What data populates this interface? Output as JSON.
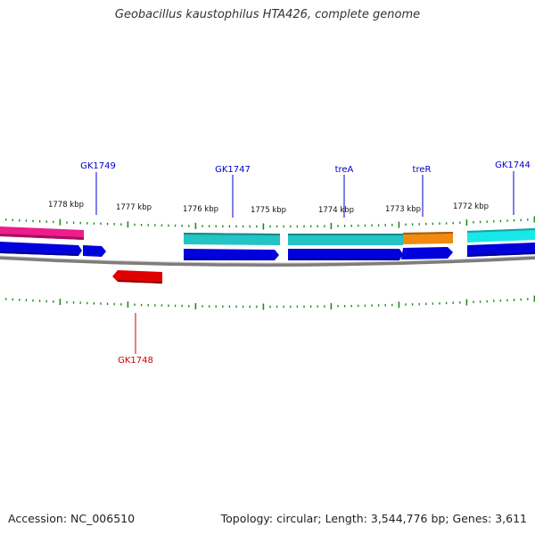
{
  "title": "Geobacillus kaustophilus HTA426, complete genome",
  "footer": {
    "accession": "Accession: NC_006510",
    "summary": "Topology: circular; Length: 3,544,776 bp; Genes: 3,611"
  },
  "colors": {
    "backbone": "#8a8a8a",
    "tick": "#1f8a1f",
    "label_forward": "#0000cc",
    "label_reverse": "#cc0000",
    "gene_blue": "#0000dd",
    "gene_teal": "#22c4c4",
    "gene_cyan": "#18e8e8",
    "gene_magenta": "#ee1c8c",
    "gene_orange": "#f08a10",
    "gene_red": "#e00000"
  },
  "axis": {
    "kbp_labels": [
      "1778 kbp",
      "1777 kbp",
      "1776 kbp",
      "1775 kbp",
      "1774 kbp",
      "1773 kbp",
      "1772 kbp"
    ]
  },
  "gene_labels": {
    "GK1749": "GK1749",
    "GK1747": "GK1747",
    "treA": "treA",
    "treR": "treR",
    "GK1744": "GK1744",
    "GK1748": "GK1748"
  }
}
